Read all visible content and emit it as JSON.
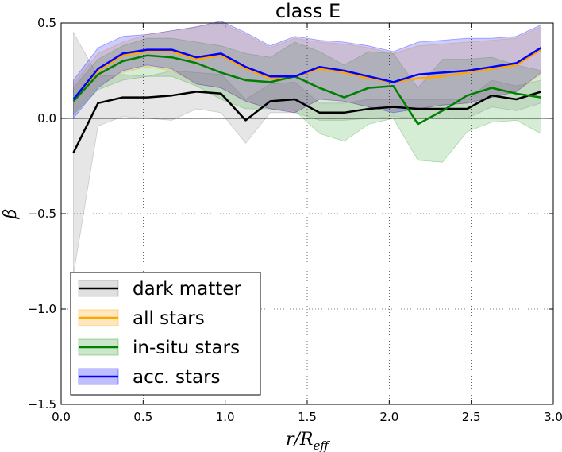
{
  "chart_data": {
    "type": "line",
    "title": "class E",
    "xlabel": "r/R_eff",
    "ylabel": "β",
    "xlim": [
      0.0,
      3.0
    ],
    "ylim": [
      -1.5,
      0.5
    ],
    "grid": true,
    "zero_line": 0.0,
    "xticks": [
      0.0,
      0.5,
      1.0,
      1.5,
      2.0,
      2.5,
      3.0
    ],
    "xtick_labels": [
      "0.0",
      "0.5",
      "1.0",
      "1.5",
      "2.0",
      "2.5",
      "3.0"
    ],
    "yticks": [
      0.5,
      0.0,
      -0.5,
      -1.0,
      -1.5
    ],
    "ytick_labels": [
      "0.5",
      "0.0",
      "−0.5",
      "−1.0",
      "−1.5"
    ],
    "legend_position": "lower-left",
    "x": [
      0.075,
      0.225,
      0.375,
      0.525,
      0.675,
      0.825,
      0.975,
      1.125,
      1.275,
      1.425,
      1.575,
      1.725,
      1.875,
      2.025,
      2.175,
      2.325,
      2.475,
      2.625,
      2.775,
      2.925
    ],
    "series": [
      {
        "name": "dark matter",
        "color": "#000000",
        "fill": "#808080",
        "values": [
          -0.18,
          0.08,
          0.11,
          0.11,
          0.12,
          0.14,
          0.13,
          -0.01,
          0.09,
          0.1,
          0.03,
          0.03,
          0.05,
          0.06,
          0.05,
          0.05,
          0.05,
          0.12,
          0.1,
          0.14
        ],
        "upper": [
          0.45,
          0.22,
          0.23,
          0.22,
          0.25,
          0.24,
          0.23,
          0.1,
          0.18,
          0.19,
          0.08,
          0.08,
          0.1,
          0.1,
          0.1,
          0.1,
          0.1,
          0.2,
          0.17,
          0.2
        ],
        "lower": [
          -0.82,
          -0.04,
          0.01,
          0.0,
          -0.01,
          0.05,
          0.03,
          -0.13,
          0.03,
          0.03,
          -0.01,
          -0.01,
          0.0,
          0.01,
          0.0,
          0.0,
          0.0,
          0.06,
          0.04,
          0.08
        ]
      },
      {
        "name": "all stars",
        "color": "#ffa500",
        "fill": "#ffa500",
        "values": [
          0.1,
          0.25,
          0.33,
          0.35,
          0.35,
          0.31,
          0.33,
          0.26,
          0.21,
          0.22,
          0.26,
          0.24,
          0.21,
          0.19,
          0.21,
          0.22,
          0.24,
          0.26,
          0.28,
          0.36
        ],
        "upper": [
          0.18,
          0.34,
          0.4,
          0.44,
          0.46,
          0.48,
          0.5,
          0.44,
          0.37,
          0.42,
          0.4,
          0.39,
          0.37,
          0.34,
          0.38,
          0.39,
          0.4,
          0.41,
          0.42,
          0.48
        ],
        "lower": [
          0.03,
          0.17,
          0.24,
          0.27,
          0.25,
          0.18,
          0.16,
          0.09,
          0.05,
          0.03,
          0.1,
          0.09,
          0.06,
          0.04,
          0.05,
          0.07,
          0.08,
          0.11,
          0.14,
          0.23
        ]
      },
      {
        "name": "in-situ stars",
        "color": "#008000",
        "fill": "#2ca02c",
        "values": [
          0.09,
          0.23,
          0.3,
          0.33,
          0.32,
          0.29,
          0.24,
          0.2,
          0.19,
          0.22,
          0.16,
          0.11,
          0.16,
          0.17,
          -0.03,
          0.04,
          0.12,
          0.16,
          0.13,
          0.11
        ],
        "upper": [
          0.16,
          0.31,
          0.38,
          0.42,
          0.42,
          0.4,
          0.38,
          0.34,
          0.32,
          0.4,
          0.35,
          0.28,
          0.35,
          0.34,
          0.16,
          0.31,
          0.31,
          0.32,
          0.28,
          0.25
        ],
        "lower": [
          0.02,
          0.15,
          0.2,
          0.22,
          0.22,
          0.17,
          0.1,
          0.05,
          0.05,
          0.04,
          -0.08,
          -0.12,
          -0.03,
          0.0,
          -0.22,
          -0.23,
          -0.07,
          -0.02,
          -0.01,
          -0.08
        ]
      },
      {
        "name": "acc. stars",
        "color": "#0000ff",
        "fill": "#0000ff",
        "values": [
          0.1,
          0.26,
          0.34,
          0.36,
          0.36,
          0.32,
          0.34,
          0.27,
          0.22,
          0.22,
          0.27,
          0.25,
          0.22,
          0.19,
          0.23,
          0.24,
          0.25,
          0.27,
          0.29,
          0.37
        ],
        "upper": [
          0.2,
          0.37,
          0.43,
          0.44,
          0.46,
          0.48,
          0.51,
          0.45,
          0.38,
          0.43,
          0.41,
          0.4,
          0.38,
          0.35,
          0.4,
          0.41,
          0.42,
          0.42,
          0.43,
          0.49
        ],
        "lower": [
          0.0,
          0.16,
          0.25,
          0.28,
          0.26,
          0.18,
          0.16,
          0.09,
          0.05,
          0.03,
          0.1,
          0.09,
          0.06,
          0.03,
          0.05,
          0.07,
          0.08,
          0.11,
          0.14,
          0.24
        ]
      }
    ]
  }
}
